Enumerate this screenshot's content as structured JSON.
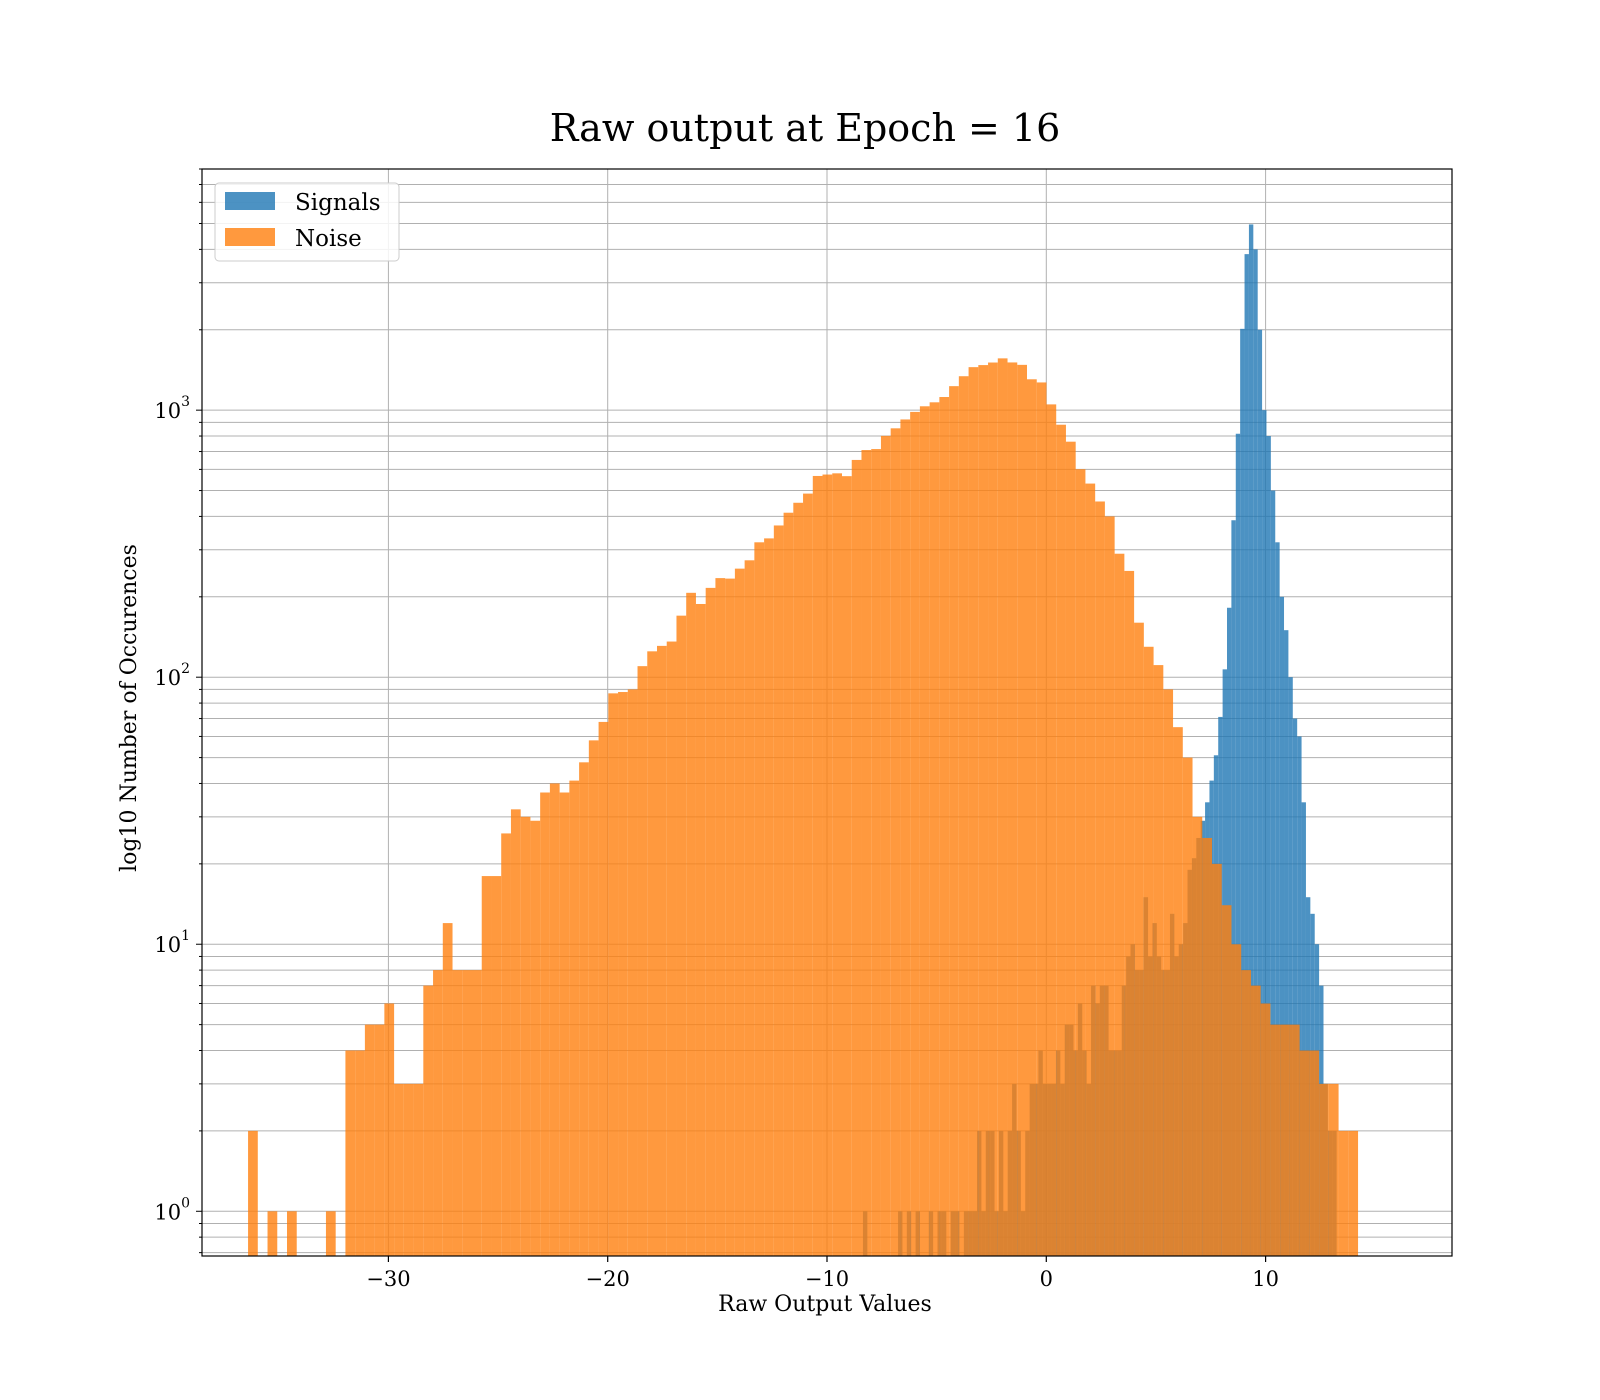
{
  "chart_data": {
    "type": "histogram",
    "title": "Raw output at Epoch = 16",
    "xlabel": "Raw Output Values",
    "ylabel": "log10 Number of Occurences",
    "xlim": [
      -38.5,
      18.5
    ],
    "ylim": [
      0.68,
      8000
    ],
    "yscale": "log",
    "grid": true,
    "legend_position": "top-left",
    "x_ticks": [
      -30,
      -20,
      -10,
      0,
      10
    ],
    "x_tick_labels": [
      "−30",
      "−20",
      "−10",
      "0",
      "10"
    ],
    "y_ticks": [
      1,
      10,
      100,
      1000
    ],
    "y_tick_labels": [
      {
        "base": "10",
        "exp": "0"
      },
      {
        "base": "10",
        "exp": "1"
      },
      {
        "base": "10",
        "exp": "2"
      },
      {
        "base": "10",
        "exp": "3"
      }
    ],
    "series": [
      {
        "name": "Signals",
        "color": "#1f77b4",
        "opacity": 0.8,
        "bin_start": -8.36,
        "bin_width": 0.2,
        "counts": [
          1,
          0,
          0,
          0,
          0,
          0,
          0,
          0,
          1,
          0,
          1,
          0,
          1,
          0,
          0,
          1,
          0,
          1,
          1,
          0,
          1,
          1,
          0,
          1,
          1,
          1,
          2,
          1,
          2,
          2,
          1,
          2,
          1,
          2,
          3,
          2,
          1,
          2,
          3,
          3,
          4,
          3,
          3,
          3,
          4,
          3,
          5,
          5,
          4,
          6,
          4,
          3,
          7,
          6,
          7,
          7,
          4,
          4,
          4,
          7,
          9,
          10,
          8,
          8,
          15,
          9,
          12,
          9,
          8,
          8,
          13,
          9,
          10,
          12,
          19,
          21,
          25,
          29,
          34,
          41,
          51,
          71,
          107,
          182,
          387,
          816,
          2016,
          3840,
          4960,
          4000,
          2000,
          1000,
          800,
          500,
          320,
          200,
          150,
          100,
          70,
          60,
          34,
          15,
          13,
          10,
          7,
          3,
          2,
          2
        ]
      },
      {
        "name": "Noise",
        "color": "#ff7f0e",
        "opacity": 0.8,
        "bin_start": -36.4,
        "bin_width": 0.444,
        "counts": [
          2,
          0,
          1,
          0,
          1,
          0,
          0,
          0,
          1,
          0,
          4,
          4,
          5,
          5,
          6,
          3,
          3,
          3,
          7,
          8,
          12,
          8,
          8,
          8,
          18,
          18,
          26,
          32,
          30,
          29,
          37,
          40,
          37,
          41,
          48,
          58,
          68,
          87,
          88,
          90,
          110,
          125,
          131,
          136,
          170,
          207,
          188,
          216,
          235,
          234,
          255,
          274,
          320,
          331,
          370,
          413,
          450,
          487,
          567,
          574,
          580,
          566,
          651,
          709,
          715,
          801,
          855,
          923,
          985,
          1034,
          1070,
          1120,
          1230,
          1340,
          1449,
          1475,
          1508,
          1563,
          1509,
          1478,
          1305,
          1270,
          1051,
          882,
          762,
          601,
          531,
          455,
          400,
          290,
          250,
          160,
          130,
          111,
          90,
          65,
          50,
          30,
          25,
          20,
          14,
          10,
          8,
          7,
          6,
          5,
          5,
          5,
          4,
          4,
          3,
          3,
          2,
          2
        ]
      }
    ]
  }
}
